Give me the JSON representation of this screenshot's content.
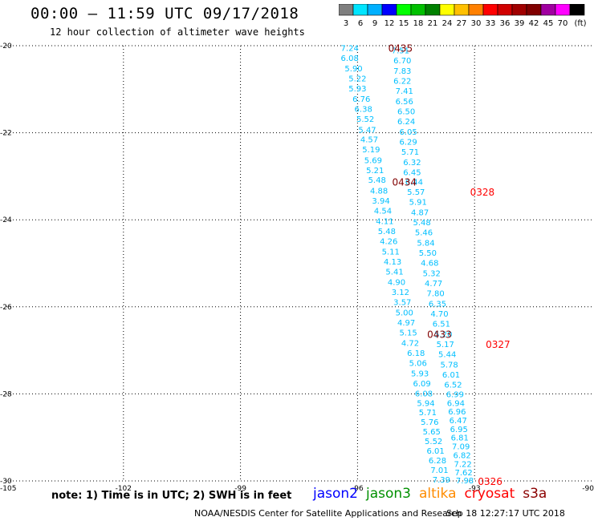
{
  "header": {
    "title": "00:00 – 11:59 UTC 09/17/2018",
    "subtitle": "12 hour collection of altimeter wave heights"
  },
  "colorbar": {
    "colors": [
      "#7f7f7f",
      "#00e5ff",
      "#00b0ff",
      "#0000ff",
      "#00ff00",
      "#00c000",
      "#008000",
      "#ffff00",
      "#ffc000",
      "#ff8000",
      "#ff0000",
      "#d00000",
      "#a00000",
      "#800000",
      "#a000a0",
      "#ff00ff",
      "#000000"
    ],
    "labels": [
      "3",
      "6",
      "9",
      "12",
      "15",
      "18",
      "21",
      "24",
      "27",
      "30",
      "33",
      "36",
      "39",
      "42",
      "45",
      "70",
      "(ft)"
    ]
  },
  "footer": {
    "note": "note: 1) Time is in UTC; 2) SWH is in feet",
    "satellites": [
      {
        "name": "jason2",
        "color": "#0000ff"
      },
      {
        "name": "jason3",
        "color": "#009000"
      },
      {
        "name": "altika",
        "color": "#ff8c00"
      },
      {
        "name": "cryosat",
        "color": "#ff0000"
      },
      {
        "name": "s3a",
        "color": "#8b0000"
      }
    ],
    "credit": "NOAA/NESDIS Center for Satellite Applications and Research",
    "timestamp": "Sep 18 12:27:17 UTC 2018"
  },
  "chart_data": {
    "type": "scatter",
    "title": "00:00 – 11:59 UTC 09/17/2018",
    "subtitle": "12 hour collection of altimeter wave heights",
    "xlim": [
      -105,
      -90
    ],
    "ylim": [
      -30,
      -20
    ],
    "x_ticks": [
      -105,
      -102,
      -99,
      -96,
      -93,
      -90
    ],
    "x_tick_labels": [
      "-105",
      "-102",
      "-99",
      "-96",
      "-93",
      "-90"
    ],
    "y_ticks": [
      -20,
      -22,
      -24,
      -26,
      -28,
      -30
    ],
    "y_tick_labels": [
      "-20",
      "-22",
      "-24",
      "-26",
      "-28",
      "-30"
    ],
    "grid": true,
    "series": [
      {
        "color": "#00bfff",
        "points": [
          {
            "x": -96.2,
            "y": -20.05,
            "label": "7.24"
          },
          {
            "x": -96.2,
            "y": -20.28,
            "label": "6.08"
          },
          {
            "x": -96.1,
            "y": -20.52,
            "label": "5.90"
          },
          {
            "x": -96.0,
            "y": -20.75,
            "label": "5.22"
          },
          {
            "x": -96.0,
            "y": -20.98,
            "label": "5.93"
          },
          {
            "x": -95.9,
            "y": -21.22,
            "label": "6.76"
          },
          {
            "x": -95.85,
            "y": -21.45,
            "label": "6.38"
          },
          {
            "x": -95.8,
            "y": -21.68,
            "label": "5.52"
          },
          {
            "x": -95.75,
            "y": -21.92,
            "label": "5.47"
          },
          {
            "x": -95.7,
            "y": -22.15,
            "label": "4.57"
          },
          {
            "x": -95.65,
            "y": -22.38,
            "label": "5.19"
          },
          {
            "x": -95.6,
            "y": -22.62,
            "label": "5.69"
          },
          {
            "x": -95.55,
            "y": -22.85,
            "label": "5.21"
          },
          {
            "x": -95.5,
            "y": -23.08,
            "label": "5.48"
          },
          {
            "x": -95.45,
            "y": -23.32,
            "label": "4.88"
          },
          {
            "x": -95.4,
            "y": -23.55,
            "label": "3.94"
          },
          {
            "x": -95.35,
            "y": -23.78,
            "label": "4.54"
          },
          {
            "x": -95.3,
            "y": -24.02,
            "label": "4.11"
          },
          {
            "x": -95.25,
            "y": -24.25,
            "label": "5.48"
          },
          {
            "x": -95.2,
            "y": -24.48,
            "label": "4.26"
          },
          {
            "x": -95.15,
            "y": -24.72,
            "label": "5.11"
          },
          {
            "x": -95.1,
            "y": -24.95,
            "label": "4.13"
          },
          {
            "x": -95.05,
            "y": -25.18,
            "label": "5.41"
          },
          {
            "x": -95.0,
            "y": -25.42,
            "label": "4.90"
          },
          {
            "x": -94.9,
            "y": -25.65,
            "label": "3.12"
          },
          {
            "x": -94.85,
            "y": -25.88,
            "label": "3.57"
          },
          {
            "x": -94.8,
            "y": -26.12,
            "label": "5.00"
          },
          {
            "x": -94.75,
            "y": -26.35,
            "label": "4.97"
          },
          {
            "x": -94.7,
            "y": -26.58,
            "label": "5.15"
          },
          {
            "x": -94.65,
            "y": -26.82,
            "label": "4.72"
          },
          {
            "x": -94.5,
            "y": -27.05,
            "label": "6.18"
          },
          {
            "x": -94.45,
            "y": -27.28,
            "label": "5.06"
          },
          {
            "x": -94.4,
            "y": -27.52,
            "label": "5.93"
          },
          {
            "x": -94.35,
            "y": -27.75,
            "label": "6.09"
          },
          {
            "x": -94.3,
            "y": -27.98,
            "label": "6.08"
          },
          {
            "x": -94.25,
            "y": -28.2,
            "label": "5.94"
          },
          {
            "x": -94.2,
            "y": -28.42,
            "label": "5.71"
          },
          {
            "x": -94.15,
            "y": -28.64,
            "label": "5.76"
          },
          {
            "x": -94.1,
            "y": -28.86,
            "label": "5.65"
          },
          {
            "x": -94.05,
            "y": -29.08,
            "label": "5.52"
          },
          {
            "x": -94.0,
            "y": -29.3,
            "label": "6.01"
          },
          {
            "x": -93.95,
            "y": -29.52,
            "label": "6.28"
          },
          {
            "x": -93.9,
            "y": -29.74,
            "label": "7.01"
          },
          {
            "x": -93.85,
            "y": -29.96,
            "label": "7.39"
          }
        ]
      },
      {
        "color": "#00bfff",
        "points": [
          {
            "x": -94.9,
            "y": -20.1,
            "label": "7.51"
          },
          {
            "x": -94.85,
            "y": -20.33,
            "label": "6.70"
          },
          {
            "x": -94.85,
            "y": -20.57,
            "label": "7.83"
          },
          {
            "x": -94.85,
            "y": -20.8,
            "label": "6.22"
          },
          {
            "x": -94.8,
            "y": -21.03,
            "label": "7.41"
          },
          {
            "x": -94.8,
            "y": -21.27,
            "label": "6.56"
          },
          {
            "x": -94.75,
            "y": -21.5,
            "label": "6.50"
          },
          {
            "x": -94.75,
            "y": -21.73,
            "label": "6.24"
          },
          {
            "x": -94.7,
            "y": -21.97,
            "label": "6.05"
          },
          {
            "x": -94.7,
            "y": -22.2,
            "label": "6.29"
          },
          {
            "x": -94.65,
            "y": -22.43,
            "label": "5.71"
          },
          {
            "x": -94.6,
            "y": -22.67,
            "label": "6.32"
          },
          {
            "x": -94.6,
            "y": -22.9,
            "label": "6.45"
          },
          {
            "x": -94.55,
            "y": -23.12,
            "label": "6.44"
          },
          {
            "x": -94.5,
            "y": -23.35,
            "label": "5.57"
          },
          {
            "x": -94.45,
            "y": -23.58,
            "label": "5.91"
          },
          {
            "x": -94.4,
            "y": -23.82,
            "label": "4.87"
          },
          {
            "x": -94.35,
            "y": -24.05,
            "label": "5.48"
          },
          {
            "x": -94.3,
            "y": -24.28,
            "label": "5.46"
          },
          {
            "x": -94.25,
            "y": -24.52,
            "label": "5.84"
          },
          {
            "x": -94.2,
            "y": -24.75,
            "label": "5.50"
          },
          {
            "x": -94.15,
            "y": -24.98,
            "label": "4.68"
          },
          {
            "x": -94.1,
            "y": -25.22,
            "label": "5.32"
          },
          {
            "x": -94.05,
            "y": -25.45,
            "label": "4.77"
          },
          {
            "x": -94.0,
            "y": -25.68,
            "label": "7.80"
          },
          {
            "x": -93.95,
            "y": -25.92,
            "label": "6.35"
          },
          {
            "x": -93.9,
            "y": -26.15,
            "label": "4.70"
          },
          {
            "x": -93.85,
            "y": -26.38,
            "label": "6.51"
          },
          {
            "x": -93.8,
            "y": -26.62,
            "label": "5.20"
          },
          {
            "x": -93.75,
            "y": -26.85,
            "label": "5.17"
          },
          {
            "x": -93.7,
            "y": -27.08,
            "label": "5.44"
          },
          {
            "x": -93.65,
            "y": -27.32,
            "label": "5.78"
          },
          {
            "x": -93.6,
            "y": -27.55,
            "label": "6.01"
          },
          {
            "x": -93.55,
            "y": -27.78,
            "label": "6.52"
          },
          {
            "x": -93.5,
            "y": -28.0,
            "label": "6.99"
          },
          {
            "x": -93.48,
            "y": -28.2,
            "label": "6.94"
          },
          {
            "x": -93.45,
            "y": -28.4,
            "label": "6.96"
          },
          {
            "x": -93.42,
            "y": -28.6,
            "label": "6.47"
          },
          {
            "x": -93.4,
            "y": -28.8,
            "label": "6.95"
          },
          {
            "x": -93.38,
            "y": -29.0,
            "label": "6.81"
          },
          {
            "x": -93.35,
            "y": -29.2,
            "label": "7.09"
          },
          {
            "x": -93.32,
            "y": -29.4,
            "label": "6.82"
          },
          {
            "x": -93.3,
            "y": -29.6,
            "label": "7.22"
          },
          {
            "x": -93.28,
            "y": -29.8,
            "label": "7.62"
          },
          {
            "x": -93.25,
            "y": -29.98,
            "label": "7.98"
          }
        ]
      }
    ],
    "time_labels": [
      {
        "x": -94.9,
        "y": -20.05,
        "label": "0435",
        "color": "#800000"
      },
      {
        "x": -94.8,
        "y": -23.12,
        "label": "0434",
        "color": "#800000"
      },
      {
        "x": -93.9,
        "y": -26.62,
        "label": "0433",
        "color": "#800000"
      },
      {
        "x": -92.8,
        "y": -23.35,
        "label": "0328",
        "color": "#ff0000"
      },
      {
        "x": -92.4,
        "y": -26.85,
        "label": "0327",
        "color": "#ff0000"
      },
      {
        "x": -92.6,
        "y": -30.0,
        "label": "0326",
        "color": "#ff0000"
      }
    ]
  }
}
